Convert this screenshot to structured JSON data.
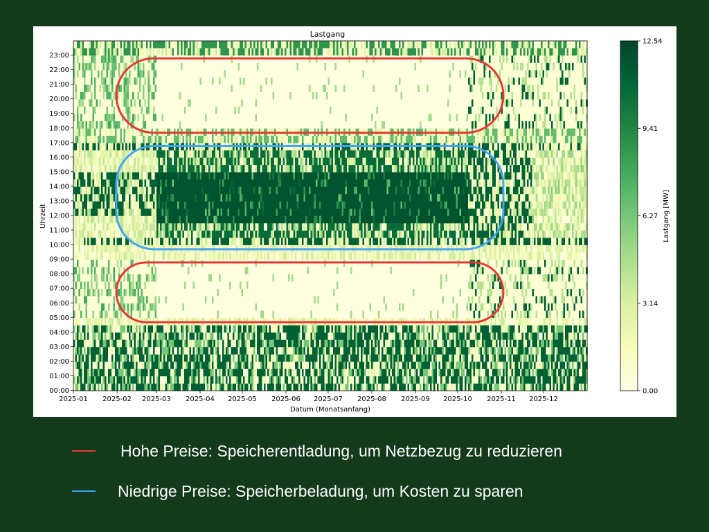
{
  "chart_data": {
    "type": "heatmap",
    "title": "Lastgang",
    "xlabel": "Datum (Monatsanfang)",
    "ylabel": "Uhrzeit",
    "colorbar_label": "Lastgang [MW]",
    "x_ticks": [
      "2025-01",
      "2025-02",
      "2025-03",
      "2025-04",
      "2025-05",
      "2025-06",
      "2025-07",
      "2025-08",
      "2025-09",
      "2025-10",
      "2025-11",
      "2025-12"
    ],
    "y_ticks": [
      "00:00",
      "01:00",
      "02:00",
      "03:00",
      "04:00",
      "05:00",
      "06:00",
      "07:00",
      "08:00",
      "09:00",
      "10:00",
      "11:00",
      "12:00",
      "13:00",
      "14:00",
      "15:00",
      "16:00",
      "17:00",
      "18:00",
      "19:00",
      "20:00",
      "21:00",
      "22:00",
      "23:00"
    ],
    "colorbar_ticks": [
      "0.00",
      "3.14",
      "6.27",
      "9.41",
      "12.54"
    ],
    "value_range": [
      0,
      12.54
    ],
    "colormap": [
      "#ffffe5",
      "#f7fcb9",
      "#d9f0a3",
      "#addd8e",
      "#78c679",
      "#41ab5d",
      "#238443",
      "#006837",
      "#004529"
    ],
    "x_range": [
      "2025-01-01",
      "2025-12-31"
    ],
    "y_range": [
      "00:00",
      "24:00"
    ],
    "approx_profile": [
      {
        "hours": "00:00-04:30",
        "months": "2025-01 to 2025-12",
        "level": "high, intermittent"
      },
      {
        "hours": "05:00-09:00",
        "months": "2025-03 to 2025-10",
        "level": "near 0"
      },
      {
        "hours": "10:30-16:30",
        "months": "2025-03 to 2025-10",
        "level": "up to 12.54"
      },
      {
        "hours": "18:00-23:00",
        "months": "2025-03 to 2025-10",
        "level": "near 0"
      }
    ],
    "annotations": [
      {
        "shape": "rounded-rect",
        "color": "#e53935",
        "hours": [
          18,
          23
        ],
        "months": [
          "2025-02",
          "2025-11"
        ]
      },
      {
        "shape": "rounded-rect",
        "color": "#42a5f5",
        "hours": [
          10,
          17
        ],
        "months": [
          "2025-02",
          "2025-11"
        ]
      },
      {
        "shape": "rounded-rect",
        "color": "#e53935",
        "hours": [
          5,
          9
        ],
        "months": [
          "2025-02",
          "2025-11"
        ]
      }
    ]
  },
  "legend": [
    {
      "color": "#e53935",
      "text": "Hohe Preise: Speicherentladung, um Netzbezug zu reduzieren"
    },
    {
      "color": "#42a5f5",
      "text": "Niedrige Preise: Speicherbeladung, um Kosten zu sparen"
    }
  ]
}
